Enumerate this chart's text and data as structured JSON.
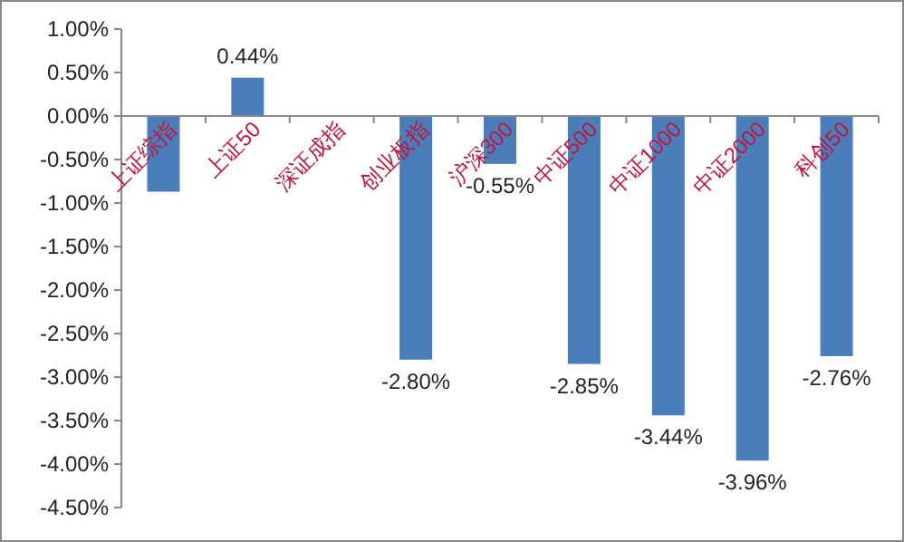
{
  "chart_data": {
    "type": "bar",
    "categories": [
      "上证综指",
      "上证50",
      "深证成指",
      "创业板指",
      "沪深300",
      "中证500",
      "中证1000",
      "中证2000",
      "科创50"
    ],
    "values": [
      -0.87,
      0.44,
      null,
      -2.8,
      -0.55,
      -2.85,
      -3.44,
      -3.96,
      -2.76
    ],
    "value_labels": [
      null,
      "0.44%",
      null,
      "-2.80%",
      "-0.55%",
      "-2.85%",
      "-3.44%",
      "-3.96%",
      "-2.76%"
    ],
    "color": "#4a7ebb",
    "ylim": [
      -4.5,
      1
    ],
    "yticks": [
      {
        "value": 1,
        "label": "1.00%"
      },
      {
        "value": 0.5,
        "label": "0.50%"
      },
      {
        "value": 0,
        "label": "0.00%"
      },
      {
        "value": -0.5,
        "label": "-0.50%"
      },
      {
        "value": -1,
        "label": "-1.00%"
      },
      {
        "value": -1.5,
        "label": "-1.50%"
      },
      {
        "value": -2,
        "label": "-2.00%"
      },
      {
        "value": -2.5,
        "label": "-2.50%"
      },
      {
        "value": -3,
        "label": "-3.00%"
      },
      {
        "value": -3.5,
        "label": "-3.50%"
      },
      {
        "value": -4,
        "label": "-4.00%"
      },
      {
        "value": -4.5,
        "label": "-4.50%"
      }
    ],
    "grid": false
  }
}
